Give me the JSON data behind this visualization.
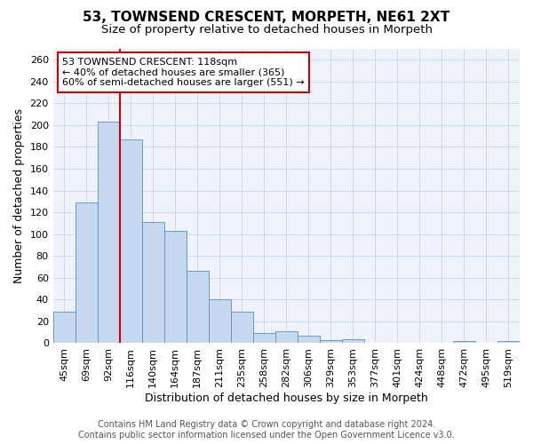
{
  "title": "53, TOWNSEND CRESCENT, MORPETH, NE61 2XT",
  "subtitle": "Size of property relative to detached houses in Morpeth",
  "xlabel": "Distribution of detached houses by size in Morpeth",
  "ylabel": "Number of detached properties",
  "categories": [
    "45sqm",
    "69sqm",
    "92sqm",
    "116sqm",
    "140sqm",
    "164sqm",
    "187sqm",
    "211sqm",
    "235sqm",
    "258sqm",
    "282sqm",
    "306sqm",
    "329sqm",
    "353sqm",
    "377sqm",
    "401sqm",
    "424sqm",
    "448sqm",
    "472sqm",
    "495sqm",
    "519sqm"
  ],
  "values": [
    29,
    129,
    203,
    187,
    111,
    103,
    66,
    40,
    29,
    9,
    11,
    7,
    3,
    4,
    0,
    0,
    0,
    0,
    2,
    0,
    2
  ],
  "bar_color": "#c5d8f0",
  "bar_edge_color": "#5a8fc0",
  "vline_index": 3,
  "vline_color": "#cc0000",
  "annotation_text": "53 TOWNSEND CRESCENT: 118sqm\n← 40% of detached houses are smaller (365)\n60% of semi-detached houses are larger (551) →",
  "annotation_box_edgecolor": "#cc0000",
  "annotation_box_facecolor": "#ffffff",
  "ylim": [
    0,
    270
  ],
  "yticks": [
    0,
    20,
    40,
    60,
    80,
    100,
    120,
    140,
    160,
    180,
    200,
    220,
    240,
    260
  ],
  "footer_line1": "Contains HM Land Registry data © Crown copyright and database right 2024.",
  "footer_line2": "Contains public sector information licensed under the Open Government Licence v3.0.",
  "bg_color": "#edf2fb",
  "title_fontsize": 11,
  "subtitle_fontsize": 9.5,
  "axis_label_fontsize": 9,
  "tick_fontsize": 8,
  "footer_fontsize": 7
}
